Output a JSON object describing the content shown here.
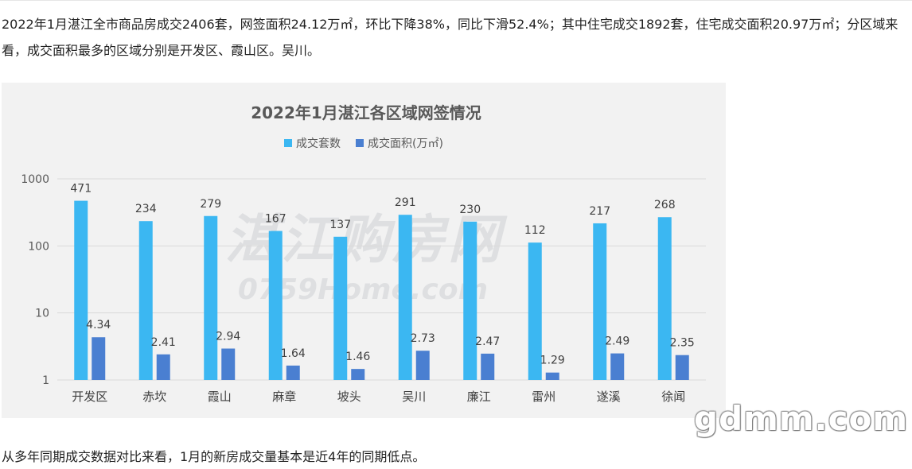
{
  "article": {
    "intro": "2022年1月湛江全市商品房成交2406套，网签面积24.12万㎡，环比下降38%，同比下滑52.4%；其中住宅成交1892套，住宅成交面积20.97万㎡；分区域来看，成交面积最多的区域分别是开发区、霞山区。吴川。",
    "outro": "从多年同期成交数据对比来看，1月的新房成交量基本是近4年的同期低点。"
  },
  "watermarks": {
    "chart_cn": "湛江购房网",
    "chart_en": "0759Home.com",
    "site": "gdmm.com"
  },
  "colors": {
    "series1": "#3bb7f2",
    "series2": "#4a7fd1",
    "background": "#f2f2f2",
    "gridline": "#d9d9d9"
  },
  "chart_data": {
    "type": "bar",
    "title": "2022年1月湛江各区域网签情况",
    "legend_position": "top",
    "y_scale": "log",
    "ylim": [
      1,
      1000
    ],
    "y_ticks": [
      1,
      10,
      100,
      1000
    ],
    "grid": true,
    "categories": [
      "开发区",
      "赤坎",
      "霞山",
      "麻章",
      "坡头",
      "吴川",
      "廉江",
      "雷州",
      "遂溪",
      "徐闻"
    ],
    "series": [
      {
        "name": "成交套数",
        "values": [
          471,
          234,
          279,
          167,
          137,
          291,
          230,
          112,
          217,
          268
        ],
        "labels": [
          "471",
          "234",
          "279",
          "167",
          "137",
          "291",
          "230",
          "112",
          "217",
          "268"
        ]
      },
      {
        "name": "成交面积(万㎡)",
        "values": [
          4.34,
          2.41,
          2.94,
          1.64,
          1.46,
          2.73,
          2.47,
          1.29,
          2.49,
          2.35
        ],
        "labels": [
          "4.34",
          "2.41",
          "2.94",
          "1.64",
          "1.46",
          "2.73",
          "2.47",
          "1.29",
          "2.49",
          "2.35"
        ]
      }
    ]
  }
}
